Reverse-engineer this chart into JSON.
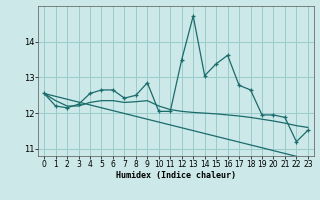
{
  "xlabel": "Humidex (Indice chaleur)",
  "background_color": "#cce8e8",
  "grid_color": "#99cccc",
  "line_color": "#1a6b6b",
  "x": [
    0,
    1,
    2,
    3,
    4,
    5,
    6,
    7,
    8,
    9,
    10,
    11,
    12,
    13,
    14,
    15,
    16,
    17,
    18,
    19,
    20,
    21,
    22,
    23
  ],
  "y_main": [
    12.55,
    12.2,
    12.15,
    12.25,
    12.55,
    12.65,
    12.65,
    12.42,
    12.5,
    12.85,
    12.05,
    12.05,
    13.5,
    14.72,
    13.05,
    13.38,
    13.62,
    12.78,
    12.65,
    11.95,
    11.95,
    11.88,
    11.2,
    11.52
  ],
  "y_trend": [
    12.55,
    12.47,
    12.39,
    12.31,
    12.23,
    12.15,
    12.07,
    11.99,
    11.91,
    11.83,
    11.75,
    11.67,
    11.59,
    11.51,
    11.43,
    11.35,
    11.27,
    11.19,
    11.11,
    11.03,
    10.95,
    10.87,
    10.79,
    10.71
  ],
  "y_avg": [
    12.55,
    12.35,
    12.2,
    12.2,
    12.3,
    12.35,
    12.35,
    12.3,
    12.32,
    12.35,
    12.2,
    12.1,
    12.05,
    12.02,
    12.0,
    11.98,
    11.95,
    11.92,
    11.88,
    11.83,
    11.78,
    11.72,
    11.65,
    11.6
  ],
  "ylim": [
    10.8,
    15.0
  ],
  "yticks": [
    11,
    12,
    13,
    14
  ],
  "xlim": [
    -0.5,
    23.5
  ],
  "xticks": [
    0,
    1,
    2,
    3,
    4,
    5,
    6,
    7,
    8,
    9,
    10,
    11,
    12,
    13,
    14,
    15,
    16,
    17,
    18,
    19,
    20,
    21,
    22,
    23
  ]
}
